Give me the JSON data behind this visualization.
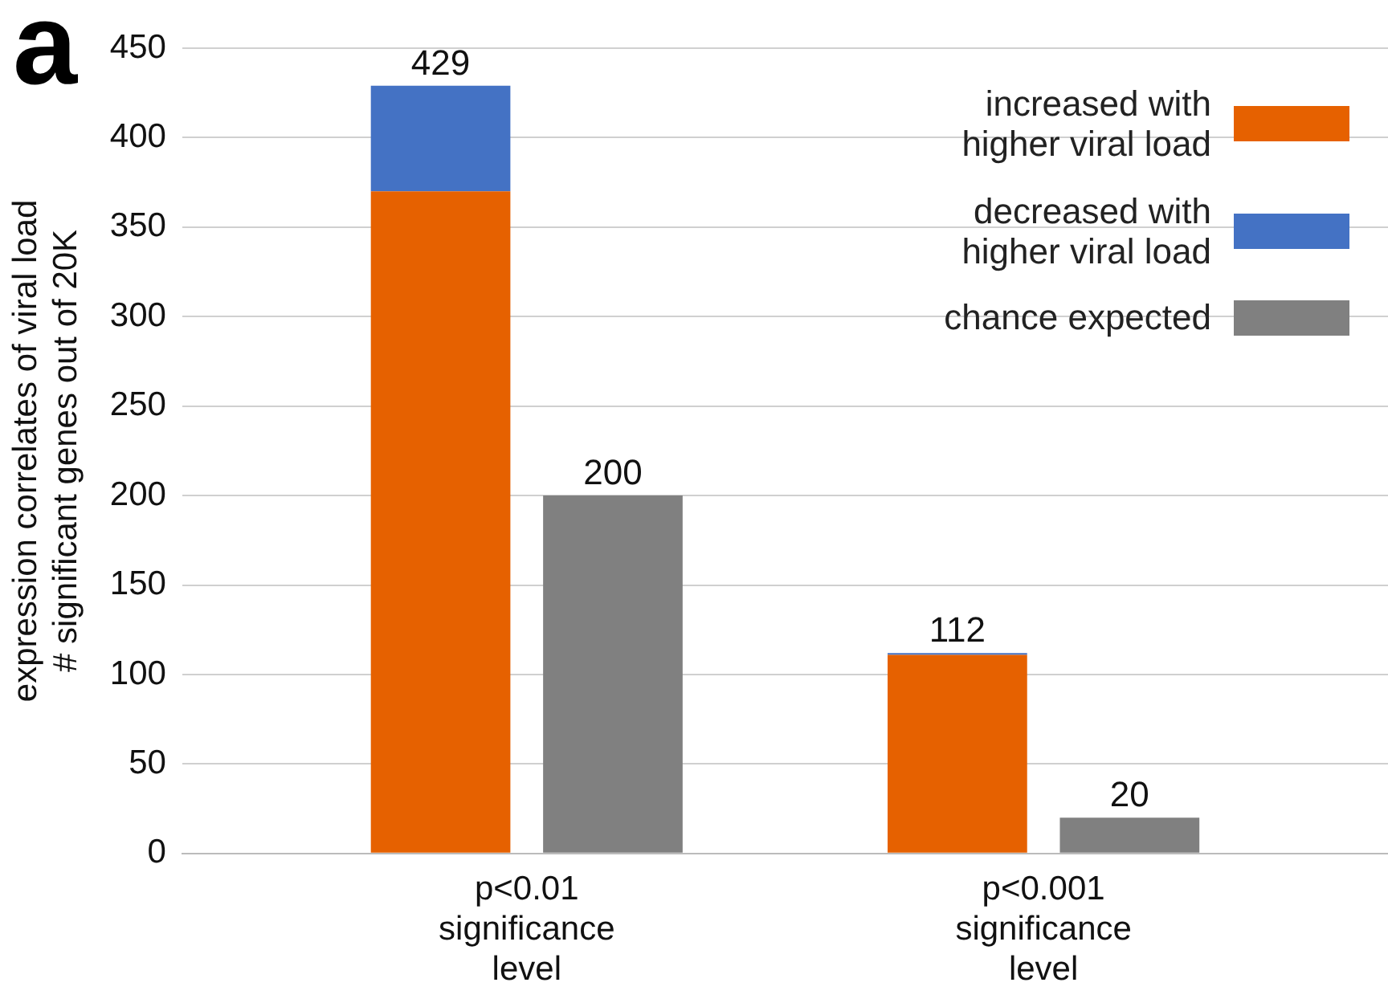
{
  "chart_data": {
    "type": "bar",
    "stacked": true,
    "ylabel": "expression correlates of viral load\n# significant genes out of 20K",
    "categories": [
      null,
      "p<0.01\nsignificance\nlevel",
      null,
      null,
      "p<0.001\nsignificance\nlevel",
      null,
      null
    ],
    "series": [
      {
        "name": "increased with higher viral load",
        "color": "#e66100",
        "values": [
          null,
          370,
          null,
          null,
          111,
          null,
          null
        ]
      },
      {
        "name": "decreased with higher viral load",
        "color": "#4472c4",
        "values": [
          null,
          59,
          null,
          null,
          1,
          null,
          null
        ]
      },
      {
        "name": "chance expected",
        "color": "#808080",
        "values": [
          null,
          null,
          200,
          null,
          null,
          20,
          null
        ]
      }
    ],
    "totals": [
      null,
      "429",
      "200",
      null,
      "112",
      "20",
      null
    ],
    "ylim": [
      0,
      450
    ],
    "yticks": [
      0,
      50,
      100,
      150,
      200,
      250,
      300,
      350,
      400,
      450
    ],
    "grid": "y",
    "legend": "top right",
    "annotations": [
      "a"
    ]
  }
}
